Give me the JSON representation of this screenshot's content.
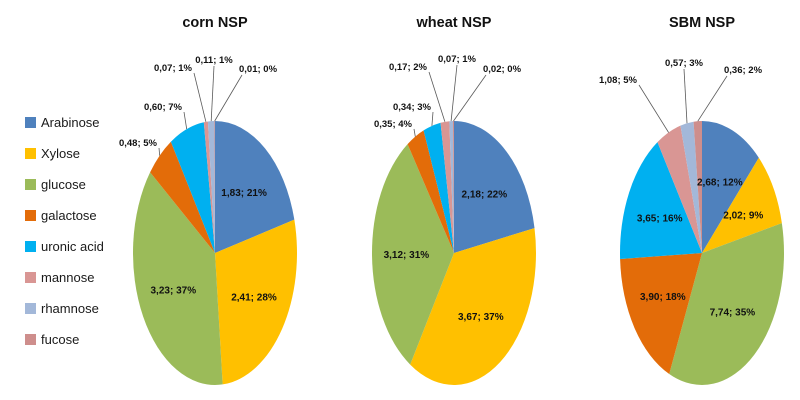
{
  "legend": {
    "items": [
      {
        "name": "Arabinose",
        "color": "#4F81BD"
      },
      {
        "name": "Xylose",
        "color": "#FFC000"
      },
      {
        "name": "glucose",
        "color": "#9BBB59"
      },
      {
        "name": "galactose",
        "color": "#E36C09"
      },
      {
        "name": "uronic acid",
        "color": "#00B0F0"
      },
      {
        "name": "mannose",
        "color": "#D99694"
      },
      {
        "name": "rhamnose",
        "color": "#A3B8D9"
      },
      {
        "name": "fucose",
        "color": "#CE8E8C"
      }
    ]
  },
  "chart_data": [
    {
      "type": "pie",
      "title": "corn NSP",
      "label_format": "value; percent",
      "slices": [
        {
          "name": "Arabinose",
          "value": 1.83,
          "pct": 21,
          "label": "1,83; 21%"
        },
        {
          "name": "Xylose",
          "value": 2.41,
          "pct": 28,
          "label": "2,41; 28%"
        },
        {
          "name": "glucose",
          "value": 3.23,
          "pct": 37,
          "label": "3,23; 37%"
        },
        {
          "name": "galactose",
          "value": 0.48,
          "pct": 5,
          "label": "0,48; 5%"
        },
        {
          "name": "uronic acid",
          "value": 0.6,
          "pct": 7,
          "label": "0,60; 7%"
        },
        {
          "name": "mannose",
          "value": 0.07,
          "pct": 1,
          "label": "0,07; 1%"
        },
        {
          "name": "rhamnose",
          "value": 0.11,
          "pct": 1,
          "label": "0,11; 1%"
        },
        {
          "name": "fucose",
          "value": 0.01,
          "pct": 0,
          "label": "0,01; 0%"
        }
      ]
    },
    {
      "type": "pie",
      "title": "wheat NSP",
      "label_format": "value; percent",
      "slices": [
        {
          "name": "Arabinose",
          "value": 2.18,
          "pct": 22,
          "label": "2,18; 22%"
        },
        {
          "name": "Xylose",
          "value": 3.67,
          "pct": 37,
          "label": "3,67; 37%"
        },
        {
          "name": "glucose",
          "value": 3.12,
          "pct": 31,
          "label": "3,12; 31%"
        },
        {
          "name": "galactose",
          "value": 0.35,
          "pct": 4,
          "label": "0,35; 4%"
        },
        {
          "name": "uronic acid",
          "value": 0.34,
          "pct": 3,
          "label": "0,34; 3%"
        },
        {
          "name": "mannose",
          "value": 0.17,
          "pct": 2,
          "label": "0,17; 2%"
        },
        {
          "name": "rhamnose",
          "value": 0.07,
          "pct": 1,
          "label": "0,07; 1%"
        },
        {
          "name": "fucose",
          "value": 0.02,
          "pct": 0,
          "label": "0,02; 0%"
        }
      ]
    },
    {
      "type": "pie",
      "title": "SBM NSP",
      "label_format": "value; percent",
      "slices": [
        {
          "name": "Arabinose",
          "value": 2.68,
          "pct": 12,
          "label": "2,68; 12%"
        },
        {
          "name": "Xylose",
          "value": 2.02,
          "pct": 9,
          "label": "2,02; 9%"
        },
        {
          "name": "glucose",
          "value": 7.74,
          "pct": 35,
          "label": "7,74; 35%"
        },
        {
          "name": "galactose",
          "value": 3.9,
          "pct": 18,
          "label": "3,90; 18%"
        },
        {
          "name": "uronic acid",
          "value": 3.65,
          "pct": 16,
          "label": "3,65; 16%"
        },
        {
          "name": "mannose",
          "value": 1.08,
          "pct": 5,
          "label": "1,08; 5%"
        },
        {
          "name": "rhamnose",
          "value": 0.57,
          "pct": 3,
          "label": "0,57; 3%"
        },
        {
          "name": "fucose",
          "value": 0.36,
          "pct": 2,
          "label": "0,36; 2%"
        }
      ]
    }
  ]
}
